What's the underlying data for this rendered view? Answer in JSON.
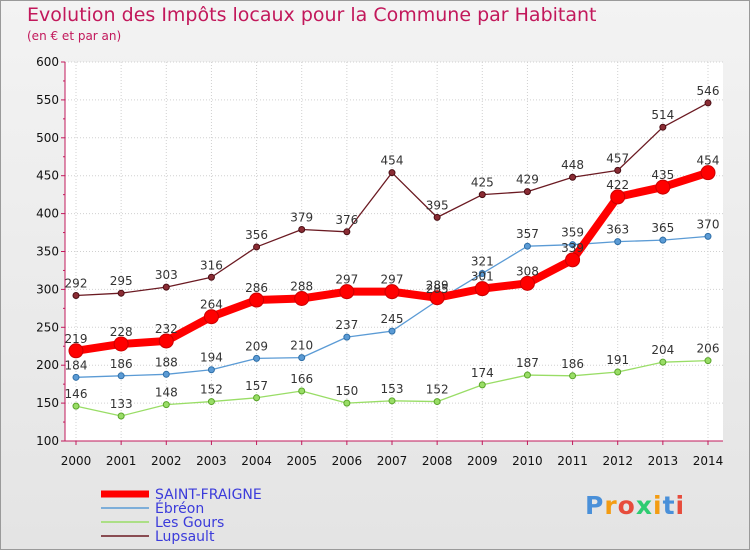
{
  "chart_data": {
    "type": "line",
    "title": "Evolution des Impôts locaux pour la Commune par Habitant",
    "subtitle": "(en € et par an)",
    "xlabel": "",
    "ylabel": "",
    "x": [
      "2000",
      "2001",
      "2002",
      "2003",
      "2004",
      "2005",
      "2006",
      "2007",
      "2008",
      "2009",
      "2010",
      "2011",
      "2012",
      "2013",
      "2014"
    ],
    "ylim": [
      100,
      600
    ],
    "yticks": [
      100,
      150,
      200,
      250,
      300,
      350,
      400,
      450,
      500,
      550,
      600
    ],
    "grid": true,
    "legend_position": "bottom-left",
    "series": [
      {
        "name": "SAINT-FRAIGNE",
        "color": "#ff0000",
        "values": [
          219,
          228,
          232,
          264,
          286,
          288,
          297,
          297,
          289,
          301,
          308,
          339,
          422,
          435,
          454
        ]
      },
      {
        "name": "Ébréon",
        "color": "#5b9bd5",
        "values": [
          184,
          186,
          188,
          194,
          209,
          210,
          237,
          245,
          285,
          321,
          357,
          359,
          363,
          365,
          370
        ]
      },
      {
        "name": "Les Gours",
        "color": "#99dd66",
        "values": [
          146,
          133,
          148,
          152,
          157,
          166,
          150,
          153,
          152,
          174,
          187,
          186,
          191,
          204,
          206
        ]
      },
      {
        "name": "Lupsault",
        "color": "#6b1a22",
        "values": [
          292,
          295,
          303,
          316,
          356,
          379,
          376,
          454,
          395,
          425,
          429,
          448,
          457,
          514,
          546
        ]
      }
    ]
  },
  "logo": {
    "text": "Proxiti"
  },
  "colors": {
    "title": "#c2185b",
    "grid": "#c8c8c8",
    "legend_text": "#3b3bdb",
    "logo_p": "#4a90d9",
    "logo_r": "#f39c12",
    "logo_o": "#e74c3c",
    "logo_x": "#2ecc71"
  }
}
